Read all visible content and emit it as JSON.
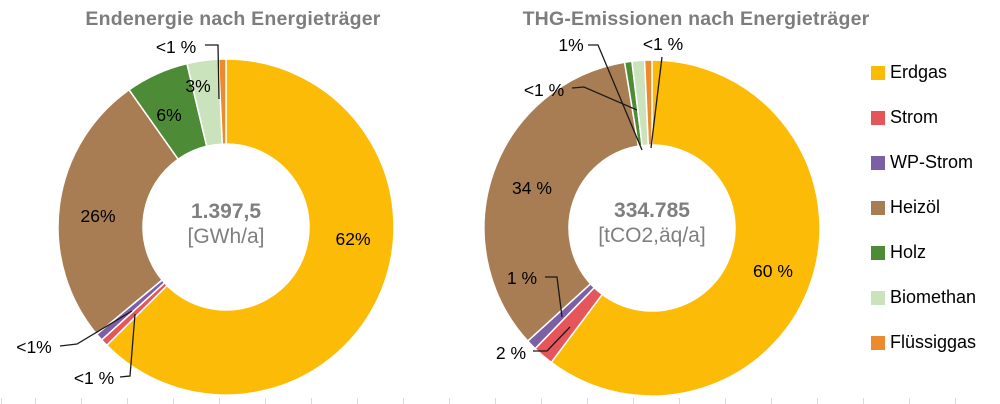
{
  "figure": {
    "background": "#ffffff",
    "title_color": "#7d7d7d",
    "center_text_color": "#7f7f7f",
    "label_color": "#000000",
    "separator_color": "#ffffff",
    "bottom_tick_color": "#d9d9d9"
  },
  "legend": {
    "items": [
      {
        "label": "Erdgas",
        "color": "#FCBB06"
      },
      {
        "label": "Strom",
        "color": "#E4565A"
      },
      {
        "label": "WP-Strom",
        "color": "#7C60A6"
      },
      {
        "label": "Heizöl",
        "color": "#A87D53"
      },
      {
        "label": "Holz",
        "color": "#4E8B37"
      },
      {
        "label": "Biomethan",
        "color": "#CBE3BD"
      },
      {
        "label": "Flüssiggas",
        "color": "#EC8A2E"
      }
    ]
  },
  "chart_data": [
    {
      "type": "pie",
      "subtype": "donut",
      "title": "Endenergie nach Energieträger",
      "center_label": {
        "value": "1.397,5",
        "unit": "[GWh/a]"
      },
      "categories": [
        "Erdgas",
        "Strom",
        "WP-Strom",
        "Heizöl",
        "Holz",
        "Biomethan",
        "Flüssiggas"
      ],
      "values": [
        62,
        0.7,
        0.7,
        26,
        6,
        3,
        0.7
      ],
      "labels": [
        "62%",
        "<1 %",
        "<1%",
        "26%",
        "6%",
        "3%",
        "<1 %"
      ],
      "colors": [
        "#FCBB06",
        "#E4565A",
        "#7C60A6",
        "#A87D53",
        "#4E8B37",
        "#CBE3BD",
        "#EC8A2E"
      ],
      "start_angle_deg": 0,
      "direction": "clockwise",
      "legend_position": "right"
    },
    {
      "type": "pie",
      "subtype": "donut",
      "title": "THG-Emissionen nach Energieträger",
      "center_label": {
        "value": "334.785",
        "unit": "[tCO2,äq/a]"
      },
      "categories": [
        "Erdgas",
        "Strom",
        "WP-Strom",
        "Heizöl",
        "Holz",
        "Biomethan",
        "Flüssiggas"
      ],
      "values": [
        60,
        2,
        1,
        34,
        0.7,
        1.2,
        0.7
      ],
      "labels": [
        "60 %",
        "2 %",
        "1 %",
        "34 %",
        "<1 %",
        "1%",
        "<1 %"
      ],
      "colors": [
        "#FCBB06",
        "#E4565A",
        "#7C60A6",
        "#A87D53",
        "#4E8B37",
        "#CBE3BD",
        "#EC8A2E"
      ],
      "start_angle_deg": 0,
      "direction": "clockwise",
      "legend_position": "right"
    }
  ]
}
